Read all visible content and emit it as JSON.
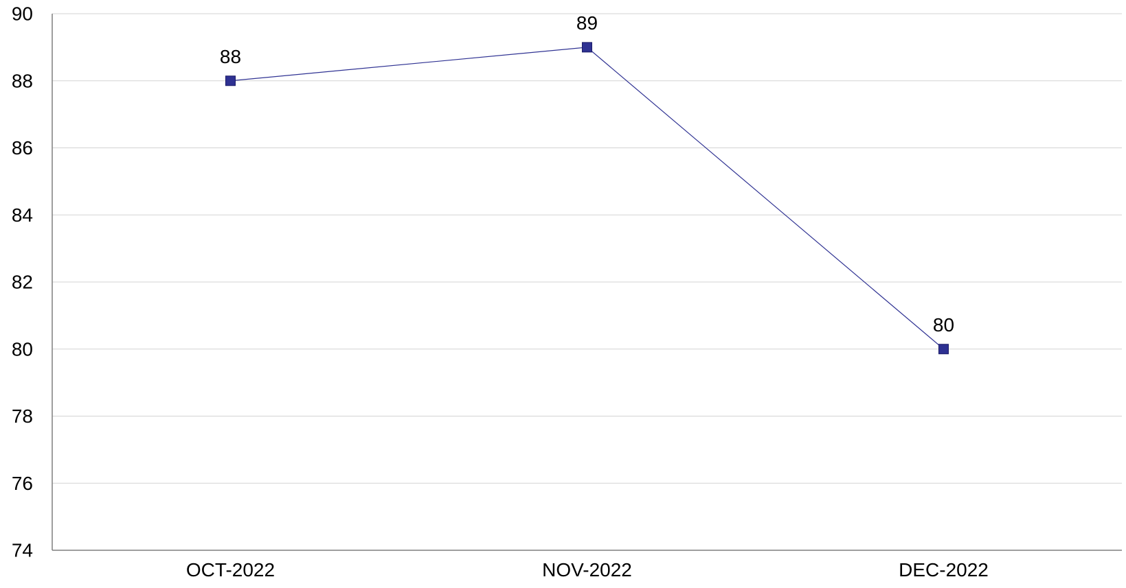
{
  "chart_data": {
    "type": "line",
    "title": "",
    "xlabel": "",
    "ylabel": "",
    "categories": [
      "OCT-2022",
      "NOV-2022",
      "DEC-2022"
    ],
    "series": [
      {
        "values": [
          88,
          89,
          80
        ],
        "color": "#2e3192"
      }
    ],
    "ylim": [
      74,
      90
    ],
    "yticks": [
      74,
      76,
      78,
      80,
      82,
      84,
      86,
      88,
      90
    ],
    "data_labels": true,
    "grid": true,
    "grid_color": "#d3d3d3",
    "axis_color": "#7f7f7f",
    "legend": "none"
  }
}
